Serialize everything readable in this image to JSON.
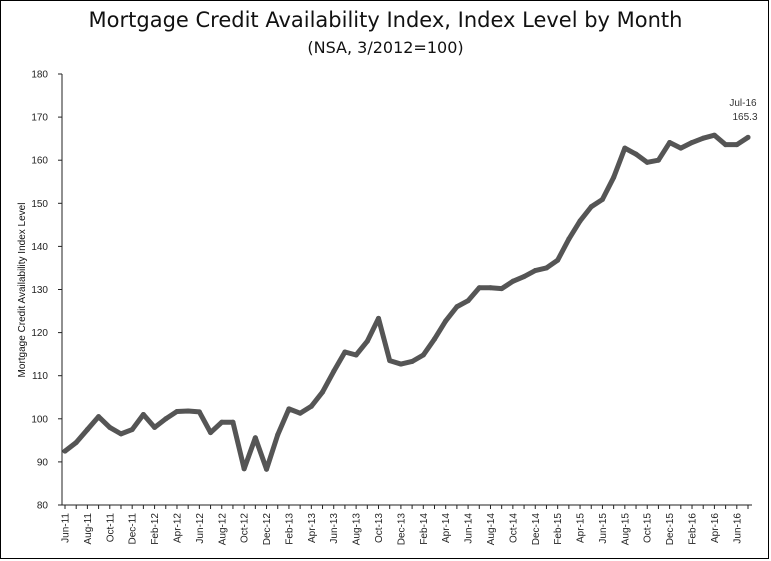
{
  "chart_data": {
    "type": "line",
    "title": "Mortgage Credit Availability Index, Index Level by Month",
    "subtitle": "(NSA, 3/2012=100)",
    "ylabel": "Mortgage Credit Availability Index Level",
    "xlabel": "",
    "ylim": [
      80,
      180
    ],
    "yticks": [
      "80",
      "90",
      "100",
      "110",
      "120",
      "130",
      "140",
      "150",
      "160",
      "170",
      "180"
    ],
    "grid": false,
    "x_labels": [
      "Jun-11",
      "Aug-11",
      "Oct-11",
      "Dec-11",
      "Feb-12",
      "Apr-12",
      "Jun-12",
      "Aug-12",
      "Oct-12",
      "Dec-12",
      "Feb-13",
      "Apr-13",
      "Jun-13",
      "Aug-13",
      "Oct-13",
      "Dec-13",
      "Feb-14",
      "Apr-14",
      "Jun-14",
      "Aug-14",
      "Oct-14",
      "Dec-14",
      "Feb-15",
      "Apr-15",
      "Jun-15",
      "Aug-15",
      "Oct-15",
      "Dec-15",
      "Feb-16",
      "Apr-16",
      "Jun-16"
    ],
    "x": [
      "Jun-11",
      "Jul-11",
      "Aug-11",
      "Sep-11",
      "Oct-11",
      "Nov-11",
      "Dec-11",
      "Jan-12",
      "Feb-12",
      "Mar-12",
      "Apr-12",
      "May-12",
      "Jun-12",
      "Jul-12",
      "Aug-12",
      "Sep-12",
      "Oct-12",
      "Nov-12",
      "Dec-12",
      "Jan-13",
      "Feb-13",
      "Mar-13",
      "Apr-13",
      "May-13",
      "Jun-13",
      "Jul-13",
      "Aug-13",
      "Sep-13",
      "Oct-13",
      "Nov-13",
      "Dec-13",
      "Jan-14",
      "Feb-14",
      "Mar-14",
      "Apr-14",
      "May-14",
      "Jun-14",
      "Jul-14",
      "Aug-14",
      "Sep-14",
      "Oct-14",
      "Nov-14",
      "Dec-14",
      "Jan-15",
      "Feb-15",
      "Mar-15",
      "Apr-15",
      "May-15",
      "Jun-15",
      "Jul-15",
      "Aug-15",
      "Sep-15",
      "Oct-15",
      "Nov-15",
      "Dec-15",
      "Jan-16",
      "Feb-16",
      "Mar-16",
      "Apr-16",
      "May-16",
      "Jun-16",
      "Jul-16"
    ],
    "series": [
      {
        "color": "#555555",
        "values": [
          92.5,
          94.5,
          97.5,
          100.5,
          98.0,
          96.5,
          97.5,
          101.0,
          98.0,
          100.0,
          101.7,
          101.8,
          101.6,
          96.8,
          99.2,
          99.2,
          88.4,
          95.6,
          88.3,
          96.3,
          102.3,
          101.3,
          102.9,
          106.2,
          111.0,
          115.5,
          114.8,
          118.0,
          123.3,
          113.5,
          112.7,
          113.3,
          114.8,
          118.5,
          122.7,
          126.0,
          127.4,
          130.4,
          130.4,
          130.2,
          131.9,
          133.0,
          134.4,
          135.0,
          136.8,
          141.7,
          145.9,
          149.2,
          150.9,
          156.0,
          162.8,
          161.4,
          159.5,
          160.0,
          164.1,
          162.8,
          164.1,
          165.1,
          165.8,
          163.6,
          163.6,
          165.3
        ]
      }
    ],
    "annotation": {
      "label": "Jul-16",
      "value_text": "165.3"
    }
  }
}
